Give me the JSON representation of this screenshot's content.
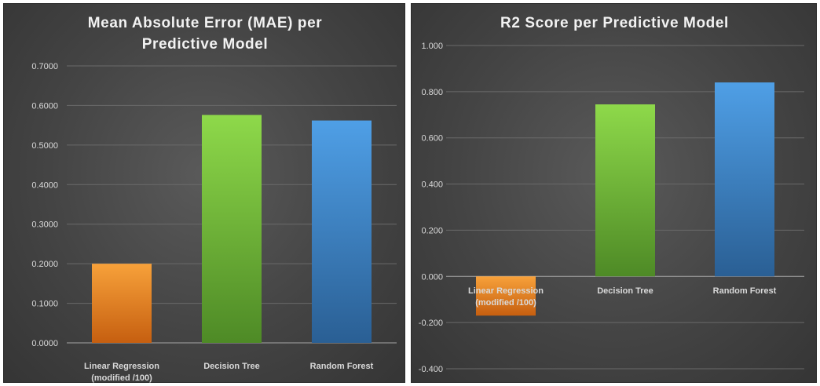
{
  "chart_data": [
    {
      "type": "bar",
      "title_lines": [
        "Mean Absolute Error (MAE) per",
        "Predictive Model"
      ],
      "categories": [
        [
          "Linear Regression",
          "(modified /100)"
        ],
        [
          "Decision Tree"
        ],
        [
          "Random Forest"
        ]
      ],
      "values": [
        0.2,
        0.576,
        0.562
      ],
      "ylim": [
        0,
        0.7
      ],
      "yticks": [
        0,
        0.1,
        0.2,
        0.3,
        0.4,
        0.5,
        0.6,
        0.7
      ],
      "ytick_labels": [
        "0.0000",
        "0.1000",
        "0.2000",
        "0.3000",
        "0.4000",
        "0.5000",
        "0.6000",
        "0.7000"
      ],
      "bar_colors": [
        "orange",
        "green",
        "blue"
      ],
      "grid": true,
      "xlabel": "",
      "ylabel": ""
    },
    {
      "type": "bar",
      "title_lines": [
        "R2 Score per Predictive Model"
      ],
      "categories": [
        [
          "Linear Regression",
          "(modified /100)"
        ],
        [
          "Decision Tree"
        ],
        [
          "Random Forest"
        ]
      ],
      "values": [
        -0.17,
        0.745,
        0.84
      ],
      "ylim": [
        -0.4,
        1.0
      ],
      "yticks": [
        -0.4,
        -0.2,
        0,
        0.2,
        0.4,
        0.6,
        0.8,
        1.0
      ],
      "ytick_labels": [
        "-0.400",
        "-0.200",
        "0.000",
        "0.200",
        "0.400",
        "0.600",
        "0.800",
        "1.000"
      ],
      "bar_colors": [
        "orange",
        "green",
        "blue"
      ],
      "grid": true,
      "xlabel": "",
      "ylabel": ""
    }
  ],
  "colors": {
    "orange": [
      "#f7a13a",
      "#c65f10"
    ],
    "green": [
      "#8ed94a",
      "#4e8a26"
    ],
    "blue": [
      "#4f9fe6",
      "#2a5f94"
    ]
  }
}
